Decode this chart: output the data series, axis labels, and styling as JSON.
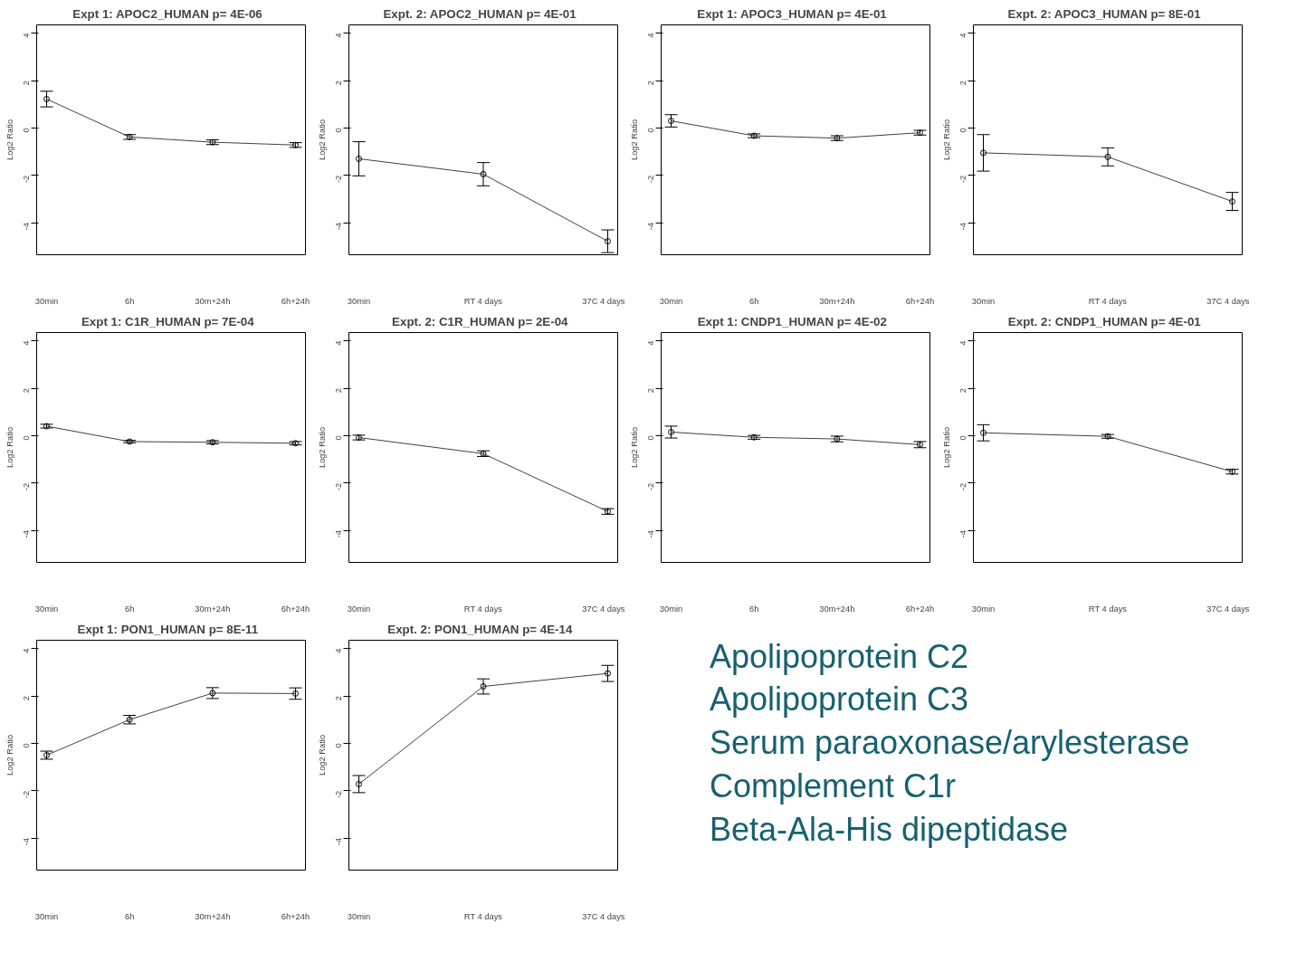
{
  "chart_data": [
    {
      "type": "line",
      "title": "Expt 1:  APOC2_HUMAN  p= 4E-06",
      "ylabel": "Log2 Ratio",
      "categories": [
        "30min",
        "6h",
        "30m+24h",
        "6h+24h"
      ],
      "values": [
        1.22,
        -0.38,
        -0.6,
        -0.72
      ],
      "errors": [
        0.33,
        0.1,
        0.1,
        0.1
      ],
      "color": "#404040",
      "marker": "circle",
      "ylim": [
        -5.35,
        4.35
      ],
      "yticks": [
        -4,
        -2,
        0,
        2,
        4
      ]
    },
    {
      "type": "line",
      "title": "Expt. 2:  APOC2_HUMAN  p= 4E-01",
      "ylabel": "Log2 Ratio",
      "categories": [
        "30min",
        "RT 4 days",
        "37C 4 days"
      ],
      "values": [
        -1.3,
        -1.95,
        -4.78
      ],
      "errors": [
        0.72,
        0.49,
        0.48
      ],
      "color": "#404040",
      "marker": "circle",
      "ylim": [
        -5.35,
        4.35
      ],
      "yticks": [
        -4,
        -2,
        0,
        2,
        4
      ]
    },
    {
      "type": "line",
      "title": "Expt 1:  APOC3_HUMAN  p= 4E-01",
      "ylabel": "Log2 Ratio",
      "categories": [
        "30min",
        "6h",
        "30m+24h",
        "6h+24h"
      ],
      "values": [
        0.3,
        -0.33,
        -0.43,
        -0.2
      ],
      "errors": [
        0.26,
        0.08,
        0.1,
        0.1
      ],
      "color": "#404040",
      "marker": "circle",
      "ylim": [
        -5.35,
        4.35
      ],
      "yticks": [
        -4,
        -2,
        0,
        2,
        4
      ]
    },
    {
      "type": "line",
      "title": "Expt. 2:  APOC3_HUMAN  p= 8E-01",
      "ylabel": "Log2 Ratio",
      "categories": [
        "30min",
        "RT 4 days",
        "37C 4 days"
      ],
      "values": [
        -1.05,
        -1.22,
        -3.1
      ],
      "errors": [
        0.77,
        0.38,
        0.38
      ],
      "color": "#404040",
      "marker": "circle",
      "ylim": [
        -5.35,
        4.35
      ],
      "yticks": [
        -4,
        -2,
        0,
        2,
        4
      ]
    },
    {
      "type": "line",
      "title": "Expt 1:  C1R_HUMAN  p= 7E-04",
      "ylabel": "Log2 Ratio",
      "categories": [
        "30min",
        "6h",
        "30m+24h",
        "6h+24h"
      ],
      "values": [
        0.4,
        -0.25,
        -0.28,
        -0.32
      ],
      "errors": [
        0.08,
        0.05,
        0.07,
        0.07
      ],
      "color": "#404040",
      "marker": "circle",
      "ylim": [
        -5.35,
        4.35
      ],
      "yticks": [
        -4,
        -2,
        0,
        2,
        4
      ]
    },
    {
      "type": "line",
      "title": "Expt. 2:  C1R_HUMAN  p= 2E-04",
      "ylabel": "Log2 Ratio",
      "categories": [
        "30min",
        "RT 4 days",
        "37C 4 days"
      ],
      "values": [
        -0.08,
        -0.76,
        -3.2
      ],
      "errors": [
        0.1,
        0.12,
        0.12
      ],
      "color": "#404040",
      "marker": "circle",
      "ylim": [
        -5.35,
        4.35
      ],
      "yticks": [
        -4,
        -2,
        0,
        2,
        4
      ]
    },
    {
      "type": "line",
      "title": "Expt 1:  CNDP1_HUMAN  p= 4E-02",
      "ylabel": "Log2 Ratio",
      "categories": [
        "30min",
        "6h",
        "30m+24h",
        "6h+24h"
      ],
      "values": [
        0.15,
        -0.07,
        -0.14,
        -0.38
      ],
      "errors": [
        0.25,
        0.08,
        0.12,
        0.13
      ],
      "color": "#404040",
      "marker": "circle",
      "ylim": [
        -5.35,
        4.35
      ],
      "yticks": [
        -4,
        -2,
        0,
        2,
        4
      ]
    },
    {
      "type": "line",
      "title": "Expt. 2:  CNDP1_HUMAN  p= 4E-01",
      "ylabel": "Log2 Ratio",
      "categories": [
        "30min",
        "RT 4 days",
        "37C 4 days"
      ],
      "values": [
        0.12,
        -0.03,
        -1.52
      ],
      "errors": [
        0.34,
        0.08,
        0.1
      ],
      "color": "#404040",
      "marker": "circle",
      "ylim": [
        -5.35,
        4.35
      ],
      "yticks": [
        -4,
        -2,
        0,
        2,
        4
      ]
    },
    {
      "type": "line",
      "title": "Expt 1:  PON1_HUMAN  p= 8E-11",
      "ylabel": "Log2 Ratio",
      "categories": [
        "30min",
        "6h",
        "30m+24h",
        "6h+24h"
      ],
      "values": [
        -0.5,
        1.0,
        2.12,
        2.1
      ],
      "errors": [
        0.17,
        0.18,
        0.23,
        0.24
      ],
      "color": "#404040",
      "marker": "circle",
      "ylim": [
        -5.35,
        4.35
      ],
      "yticks": [
        -4,
        -2,
        0,
        2,
        4
      ]
    },
    {
      "type": "line",
      "title": "Expt. 2:  PON1_HUMAN  p= 4E-14",
      "ylabel": "Log2 Ratio",
      "categories": [
        "30min",
        "RT 4 days",
        "37C 4 days"
      ],
      "values": [
        -1.72,
        2.4,
        2.95
      ],
      "errors": [
        0.36,
        0.32,
        0.34
      ],
      "color": "#404040",
      "marker": "circle",
      "ylim": [
        -5.35,
        4.35
      ],
      "yticks": [
        -4,
        -2,
        0,
        2,
        4
      ]
    },
    {
      "type": "other",
      "annotations": [
        "Apolipoprotein C2",
        "Apolipoprotein C3",
        "Serum paraoxonase/arylesterase",
        "Complement C1r",
        "Beta-Ala-His dipeptidase"
      ],
      "color": "#17616f"
    }
  ]
}
